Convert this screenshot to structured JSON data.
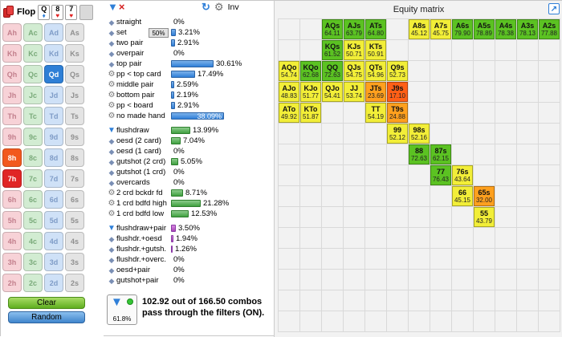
{
  "board": {
    "label": "Flop",
    "cards": [
      {
        "rank": "Q",
        "suit": "d"
      },
      {
        "rank": "8",
        "suit": "h"
      },
      {
        "rank": "7",
        "suit": "h"
      }
    ]
  },
  "card_grid": {
    "ranks": [
      "A",
      "K",
      "Q",
      "J",
      "T",
      "9",
      "8",
      "7",
      "6",
      "5",
      "4",
      "3",
      "2"
    ],
    "suits": [
      "h",
      "c",
      "d",
      "s"
    ],
    "board": [
      "Qd",
      "8h",
      "7h"
    ]
  },
  "styles": {
    "suits": {
      "h": {
        "bg": "#f7d2d7",
        "fg": "#c27f8c"
      },
      "c": {
        "bg": "#d2ecd2",
        "fg": "#7aaa7a"
      },
      "d": {
        "bg": "#cfe1f7",
        "fg": "#7f9cc7"
      },
      "s": {
        "bg": "#e4e4e4",
        "fg": "#8f8f8f"
      }
    },
    "board_cards": {
      "Qd": {
        "bg": "#2e7fd6",
        "fg": "#ffffff"
      },
      "8h": {
        "bg": "#f2591e",
        "fg": "#ffffff"
      },
      "7h": {
        "bg": "#e02525",
        "fg": "#ffffff"
      }
    },
    "suit_glyphs": {
      "h": "♥",
      "c": "♣",
      "d": "♦",
      "s": "♠"
    },
    "suit_glyph_colors": {
      "h": "#e02020",
      "c": "#2e9e2e",
      "d": "#2f7fd8",
      "s": "#222222"
    }
  },
  "buttons": {
    "clear": "Clear",
    "random": "Random"
  },
  "filter_header": {
    "inv_label": "Inv"
  },
  "filters": {
    "rows": [
      {
        "icon": "diamond",
        "label": "straight",
        "pct": "0%",
        "value": 0,
        "color": "blue"
      },
      {
        "icon": "diamond",
        "label": "set",
        "pct": "3.21%",
        "value": 3.21,
        "color": "blue",
        "badge": "50%"
      },
      {
        "icon": "diamond",
        "label": "two pair",
        "pct": "2.91%",
        "value": 2.91,
        "color": "blue"
      },
      {
        "icon": "diamond",
        "label": "overpair",
        "pct": "0%",
        "value": 0,
        "color": "blue"
      },
      {
        "icon": "diamond",
        "label": "top pair",
        "pct": "30.61%",
        "value": 30.61,
        "color": "blue"
      },
      {
        "icon": "gear",
        "label": "pp < top card",
        "pct": "17.49%",
        "value": 17.49,
        "color": "blue"
      },
      {
        "icon": "gear",
        "label": "middle pair",
        "pct": "2.59%",
        "value": 2.59,
        "color": "blue"
      },
      {
        "icon": "gear",
        "label": "bottom pair",
        "pct": "2.19%",
        "value": 2.19,
        "color": "blue"
      },
      {
        "icon": "gear",
        "label": "pp < board",
        "pct": "2.91%",
        "value": 2.91,
        "color": "blue"
      },
      {
        "icon": "gear",
        "label": "no made hand",
        "pct": "38.09%",
        "value": 38.09,
        "color": "blue",
        "inside": true
      },
      {
        "icon": "funnel",
        "label": "flushdraw",
        "pct": "13.99%",
        "value": 13.99,
        "color": "green",
        "gap": true
      },
      {
        "icon": "diamond",
        "label": "oesd (2 card)",
        "pct": "7.04%",
        "value": 7.04,
        "color": "green"
      },
      {
        "icon": "diamond",
        "label": "oesd (1 card)",
        "pct": "0%",
        "value": 0,
        "color": "green"
      },
      {
        "icon": "diamond",
        "label": "gutshot (2 crd)",
        "pct": "5.05%",
        "value": 5.05,
        "color": "green"
      },
      {
        "icon": "diamond",
        "label": "gutshot (1 crd)",
        "pct": "0%",
        "value": 0,
        "color": "green"
      },
      {
        "icon": "diamond",
        "label": "overcards",
        "pct": "0%",
        "value": 0,
        "color": "green"
      },
      {
        "icon": "gear",
        "label": "2 crd bckdr fd",
        "pct": "8.71%",
        "value": 8.71,
        "color": "green"
      },
      {
        "icon": "gear",
        "label": "1 crd bdfd high",
        "pct": "21.28%",
        "value": 21.28,
        "color": "green"
      },
      {
        "icon": "gear",
        "label": "1 crd bdfd low",
        "pct": "12.53%",
        "value": 12.53,
        "color": "green"
      },
      {
        "icon": "funnel",
        "label": "flushdraw+pair",
        "pct": "3.50%",
        "value": 3.5,
        "color": "purple",
        "gap": true
      },
      {
        "icon": "diamond",
        "label": "flushdr.+oesd",
        "pct": "1.94%",
        "value": 1.94,
        "color": "purple"
      },
      {
        "icon": "diamond",
        "label": "flushdr.+gutsh.",
        "pct": "1.26%",
        "value": 1.26,
        "color": "purple"
      },
      {
        "icon": "diamond",
        "label": "flushdr.+overc.",
        "pct": "0%",
        "value": 0,
        "color": "purple"
      },
      {
        "icon": "diamond",
        "label": "oesd+pair",
        "pct": "0%",
        "value": 0,
        "color": "purple"
      },
      {
        "icon": "diamond",
        "label": "gutshot+pair",
        "pct": "0%",
        "value": 0,
        "color": "purple"
      }
    ]
  },
  "summary": {
    "pct": "61.8%",
    "text": "102.92 out of 166.50 combos pass through the filters (ON)."
  },
  "equity_matrix": {
    "title": "Equity matrix",
    "cols": 13,
    "rows": 15,
    "colors": {
      "green": "#5bc222",
      "yellow": "#f2ee38",
      "orange": "#ffa01e",
      "red": "#ff5f16"
    },
    "cells": [
      {
        "r": 1,
        "c": 3,
        "hand": "AQs",
        "value": "64.11",
        "color": "green"
      },
      {
        "r": 1,
        "c": 4,
        "hand": "AJs",
        "value": "63.79",
        "color": "green"
      },
      {
        "r": 1,
        "c": 5,
        "hand": "ATs",
        "value": "64.80",
        "color": "green"
      },
      {
        "r": 1,
        "c": 7,
        "hand": "A8s",
        "value": "45.12",
        "color": "yellow"
      },
      {
        "r": 1,
        "c": 8,
        "hand": "A7s",
        "value": "45.75",
        "color": "yellow"
      },
      {
        "r": 1,
        "c": 9,
        "hand": "A6s",
        "value": "79.90",
        "color": "green"
      },
      {
        "r": 1,
        "c": 10,
        "hand": "A5s",
        "value": "78.89",
        "color": "green"
      },
      {
        "r": 1,
        "c": 11,
        "hand": "A4s",
        "value": "78.38",
        "color": "green"
      },
      {
        "r": 1,
        "c": 12,
        "hand": "A3s",
        "value": "78.13",
        "color": "green"
      },
      {
        "r": 1,
        "c": 13,
        "hand": "A2s",
        "value": "77.88",
        "color": "green"
      },
      {
        "r": 2,
        "c": 3,
        "hand": "KQs",
        "value": "61.52",
        "color": "green"
      },
      {
        "r": 2,
        "c": 4,
        "hand": "KJs",
        "value": "50.71",
        "color": "yellow"
      },
      {
        "r": 2,
        "c": 5,
        "hand": "KTs",
        "value": "50.91",
        "color": "yellow"
      },
      {
        "r": 3,
        "c": 1,
        "hand": "AQo",
        "value": "54.74",
        "color": "yellow"
      },
      {
        "r": 3,
        "c": 2,
        "hand": "KQo",
        "value": "62.68",
        "color": "green"
      },
      {
        "r": 3,
        "c": 3,
        "hand": "QQ",
        "value": "72.63",
        "color": "green"
      },
      {
        "r": 3,
        "c": 4,
        "hand": "QJs",
        "value": "54.75",
        "color": "yellow"
      },
      {
        "r": 3,
        "c": 5,
        "hand": "QTs",
        "value": "54.96",
        "color": "yellow"
      },
      {
        "r": 3,
        "c": 6,
        "hand": "Q9s",
        "value": "52.73",
        "color": "yellow"
      },
      {
        "r": 4,
        "c": 1,
        "hand": "AJo",
        "value": "48.83",
        "color": "yellow"
      },
      {
        "r": 4,
        "c": 2,
        "hand": "KJo",
        "value": "51.77",
        "color": "yellow"
      },
      {
        "r": 4,
        "c": 3,
        "hand": "QJo",
        "value": "54.41",
        "color": "yellow"
      },
      {
        "r": 4,
        "c": 4,
        "hand": "JJ",
        "value": "53.74",
        "color": "yellow"
      },
      {
        "r": 4,
        "c": 5,
        "hand": "JTs",
        "value": "23.69",
        "color": "orange"
      },
      {
        "r": 4,
        "c": 6,
        "hand": "J9s",
        "value": "17.10",
        "color": "red"
      },
      {
        "r": 5,
        "c": 1,
        "hand": "ATo",
        "value": "49.92",
        "color": "yellow"
      },
      {
        "r": 5,
        "c": 2,
        "hand": "KTo",
        "value": "51.87",
        "color": "yellow"
      },
      {
        "r": 5,
        "c": 5,
        "hand": "TT",
        "value": "54.19",
        "color": "yellow"
      },
      {
        "r": 5,
        "c": 6,
        "hand": "T9s",
        "value": "24.88",
        "color": "orange"
      },
      {
        "r": 6,
        "c": 6,
        "hand": "99",
        "value": "52.12",
        "color": "yellow"
      },
      {
        "r": 6,
        "c": 7,
        "hand": "98s",
        "value": "52.16",
        "color": "yellow"
      },
      {
        "r": 7,
        "c": 7,
        "hand": "88",
        "value": "72.63",
        "color": "green"
      },
      {
        "r": 7,
        "c": 8,
        "hand": "87s",
        "value": "62.15",
        "color": "green"
      },
      {
        "r": 8,
        "c": 8,
        "hand": "77",
        "value": "76.43",
        "color": "green"
      },
      {
        "r": 8,
        "c": 9,
        "hand": "76s",
        "value": "43.64",
        "color": "yellow"
      },
      {
        "r": 9,
        "c": 9,
        "hand": "66",
        "value": "45.15",
        "color": "yellow"
      },
      {
        "r": 9,
        "c": 10,
        "hand": "65s",
        "value": "32.00",
        "color": "orange"
      },
      {
        "r": 10,
        "c": 10,
        "hand": "55",
        "value": "43.79",
        "color": "yellow"
      }
    ]
  }
}
